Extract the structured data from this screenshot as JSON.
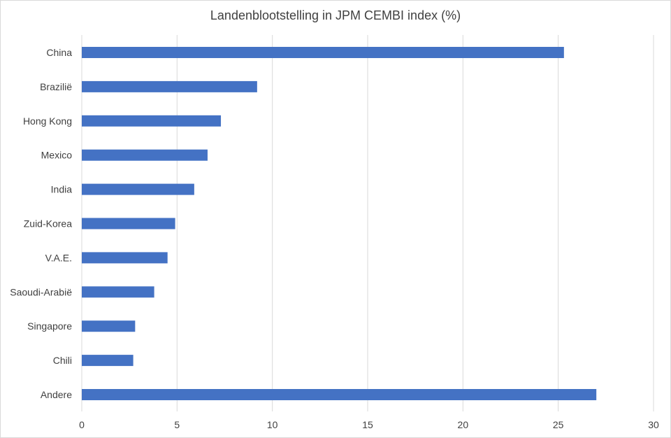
{
  "chart_data": {
    "type": "bar",
    "orientation": "horizontal",
    "title": "Landenblootstelling in JPM CEMBI index (%)",
    "xlabel": "",
    "ylabel": "",
    "categories": [
      "China",
      "Braziliё",
      "Hong Kong",
      "Mexico",
      "India",
      "Zuid-Korea",
      "V.A.E.",
      "Saoudi-Arabië",
      "Singapore",
      "Chili",
      "Andere"
    ],
    "values": [
      25.3,
      9.2,
      7.3,
      6.6,
      5.9,
      4.9,
      4.5,
      3.8,
      2.8,
      2.7,
      27.0
    ],
    "xlim": [
      0,
      30
    ],
    "xticks": [
      0,
      5,
      10,
      15,
      20,
      25,
      30
    ],
    "grid": "vertical",
    "bar_color": "#4472c4",
    "grid_color": "#d9d9d9"
  }
}
